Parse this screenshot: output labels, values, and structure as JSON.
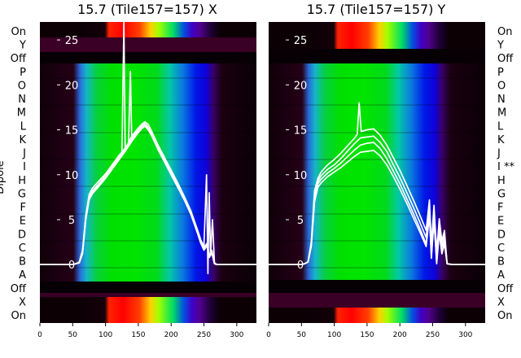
{
  "chart_data": [
    {
      "type": "line",
      "title": "15.7 (Tile157=157) X",
      "ylabel": "Dipole",
      "xlim": [
        0,
        330
      ],
      "ylim": [
        -6.5,
        27
      ],
      "x_ticks": [
        0,
        50,
        100,
        150,
        200,
        250,
        300
      ],
      "y_ticks": [
        0,
        5,
        10,
        15,
        20,
        25
      ],
      "dipole_labels": [
        "On",
        "Y",
        "Off",
        "P",
        "O",
        "N",
        "M",
        "L",
        "K",
        "J",
        "I",
        "H",
        "G",
        "F",
        "E",
        "D",
        "C",
        "B",
        "A",
        "Off",
        "X",
        "On"
      ],
      "series": [
        {
          "x": [
            0,
            45,
            50,
            55,
            60,
            65,
            70,
            75,
            80,
            90,
            100,
            110,
            120,
            130,
            140,
            150,
            155,
            160,
            165,
            170,
            180,
            190,
            200,
            210,
            220,
            230,
            240,
            245,
            250,
            255,
            258,
            262,
            266,
            270,
            280,
            290,
            300,
            320,
            330
          ],
          "y": [
            0,
            0,
            0,
            0.1,
            0.2,
            1.3,
            5.3,
            7.4,
            8.1,
            8.9,
            9.8,
            10.7,
            11.8,
            12.8,
            13.9,
            14.9,
            15.3,
            15.6,
            15.2,
            14.6,
            13.0,
            11.6,
            10.2,
            8.8,
            7.4,
            5.8,
            3.7,
            2.6,
            1.8,
            2.3,
            0.9,
            1.5,
            0.1,
            0,
            0,
            0,
            0,
            0,
            0
          ]
        },
        {
          "x": [
            0,
            45,
            50,
            55,
            60,
            65,
            70,
            75,
            80,
            90,
            100,
            110,
            120,
            130,
            140,
            150,
            155,
            160,
            165,
            170,
            180,
            190,
            200,
            210,
            220,
            230,
            240,
            245,
            250,
            255,
            258,
            262,
            266,
            270,
            280,
            290,
            300,
            320,
            330
          ],
          "y": [
            0,
            0,
            0,
            0.1,
            0.2,
            1.2,
            5.0,
            7.2,
            7.9,
            8.7,
            9.6,
            10.6,
            11.6,
            12.6,
            13.7,
            14.7,
            15.1,
            15.4,
            15.0,
            14.4,
            12.8,
            11.4,
            10.0,
            8.6,
            7.2,
            5.6,
            3.5,
            2.4,
            1.6,
            2.1,
            0.8,
            1.3,
            0.1,
            0,
            0,
            0,
            0,
            0,
            0
          ]
        },
        {
          "x": [
            0,
            45,
            50,
            55,
            60,
            65,
            70,
            75,
            80,
            90,
            100,
            110,
            120,
            125,
            128,
            130,
            140,
            150,
            155,
            160,
            165,
            170,
            180,
            190,
            200,
            210,
            220,
            230,
            240,
            245,
            250,
            254,
            256,
            258,
            260,
            263,
            266,
            270,
            280,
            290,
            300,
            320,
            330
          ],
          "y": [
            0,
            0,
            0,
            0.1,
            0.3,
            1.6,
            5.5,
            7.8,
            8.5,
            9.3,
            10.1,
            11.1,
            12.1,
            12.5,
            27,
            12.8,
            14.3,
            15.2,
            15.6,
            15.9,
            15.6,
            14.9,
            13.3,
            11.9,
            10.5,
            9.1,
            7.6,
            6.0,
            3.9,
            2.8,
            2.0,
            10,
            -1,
            8,
            1,
            5,
            0.2,
            0,
            0,
            0,
            0,
            0,
            0
          ]
        },
        {
          "x": [
            0,
            45,
            50,
            55,
            60,
            65,
            70,
            75,
            80,
            90,
            100,
            110,
            120,
            130,
            135,
            138,
            140,
            150,
            155,
            160,
            165,
            170,
            180,
            190,
            200,
            210,
            220,
            230,
            240,
            245,
            250,
            255,
            258,
            262,
            266,
            270,
            280,
            290,
            300,
            320,
            330
          ],
          "y": [
            0,
            0,
            0,
            0.1,
            0.2,
            1.4,
            5.2,
            7.5,
            8.2,
            9.0,
            9.9,
            10.9,
            11.9,
            13.0,
            13.5,
            21.5,
            14.0,
            15.0,
            15.4,
            15.7,
            15.3,
            14.7,
            13.1,
            11.7,
            10.3,
            8.9,
            7.5,
            5.9,
            3.8,
            2.7,
            1.9,
            2.4,
            1.0,
            1.6,
            0.1,
            0,
            0,
            0,
            0,
            0,
            0
          ]
        }
      ]
    },
    {
      "type": "line",
      "title": "15.7 (Tile157=157) Y",
      "xlim": [
        0,
        330
      ],
      "ylim": [
        -6.5,
        27
      ],
      "x_ticks": [
        0,
        50,
        100,
        150,
        200,
        250,
        300
      ],
      "y_ticks": [
        0,
        5,
        10,
        15,
        20,
        25
      ],
      "dipole_labels": [
        "On",
        "Y",
        "Off",
        "P",
        "O",
        "N",
        "M",
        "L",
        "K",
        "J",
        "I **",
        "H",
        "G",
        "F",
        "E",
        "D",
        "C",
        "B",
        "A",
        "Off",
        "X",
        "On"
      ],
      "series": [
        {
          "x": [
            0,
            45,
            50,
            55,
            60,
            65,
            70,
            75,
            80,
            90,
            100,
            110,
            120,
            130,
            140,
            150,
            160,
            170,
            180,
            190,
            200,
            210,
            220,
            230,
            240,
            245,
            248,
            252,
            256,
            260,
            264,
            268,
            272,
            280,
            290,
            300,
            320,
            330
          ],
          "y": [
            0,
            0,
            0,
            0.1,
            0.3,
            2.4,
            7.8,
            9.3,
            9.9,
            10.6,
            11.1,
            11.8,
            12.6,
            13.4,
            14.1,
            14.2,
            14.3,
            13.6,
            12.6,
            11.1,
            9.7,
            8.1,
            6.5,
            4.8,
            3.0,
            6.5,
            1.5,
            6.0,
            0.8,
            4.5,
            2.0,
            3.2,
            0.1,
            0,
            0,
            0,
            0,
            0
          ]
        },
        {
          "x": [
            0,
            45,
            50,
            55,
            60,
            65,
            70,
            75,
            80,
            90,
            100,
            110,
            120,
            130,
            140,
            150,
            160,
            170,
            180,
            190,
            200,
            210,
            220,
            230,
            240,
            245,
            248,
            252,
            256,
            260,
            264,
            268,
            272,
            280,
            290,
            300,
            320,
            330
          ],
          "y": [
            0,
            0,
            0,
            0.1,
            0.3,
            2.2,
            7.4,
            9.0,
            9.5,
            10.2,
            10.7,
            11.3,
            12.0,
            12.7,
            13.3,
            13.5,
            13.6,
            12.9,
            11.8,
            10.4,
            9.0,
            7.4,
            5.8,
            4.1,
            2.3,
            5.9,
            0.9,
            5.3,
            0.2,
            3.8,
            1.4,
            2.6,
            0.1,
            0,
            0,
            0,
            0,
            0
          ]
        },
        {
          "x": [
            0,
            45,
            50,
            55,
            60,
            65,
            70,
            75,
            80,
            90,
            100,
            110,
            120,
            130,
            135,
            138,
            141,
            150,
            160,
            170,
            180,
            190,
            200,
            210,
            220,
            230,
            240,
            245,
            248,
            252,
            256,
            260,
            264,
            268,
            272,
            280,
            290,
            300,
            320,
            330
          ],
          "y": [
            0,
            0,
            0,
            0.1,
            0.3,
            2.5,
            8.2,
            9.6,
            10.3,
            11.1,
            11.7,
            12.4,
            13.2,
            14.0,
            14.5,
            18,
            14.8,
            15.0,
            15.1,
            14.4,
            13.3,
            11.9,
            10.5,
            8.9,
            7.3,
            5.6,
            3.8,
            7.2,
            2.2,
            6.6,
            1.4,
            5.1,
            2.6,
            3.8,
            0.1,
            0,
            0,
            0,
            0,
            0
          ]
        },
        {
          "x": [
            0,
            45,
            50,
            55,
            60,
            65,
            70,
            75,
            80,
            90,
            100,
            110,
            120,
            130,
            140,
            150,
            160,
            170,
            180,
            190,
            200,
            210,
            220,
            230,
            240,
            245,
            248,
            252,
            256,
            260,
            264,
            268,
            272,
            280,
            290,
            300,
            320,
            330
          ],
          "y": [
            0,
            0,
            0,
            0.1,
            0.3,
            2.0,
            7.0,
            8.6,
            9.1,
            9.8,
            10.3,
            10.8,
            11.4,
            12.0,
            12.5,
            12.6,
            12.7,
            12.1,
            11.1,
            9.8,
            8.4,
            6.9,
            5.3,
            3.7,
            2.0,
            5.5,
            0.7,
            5.0,
            0.1,
            3.5,
            1.2,
            2.3,
            0.1,
            0,
            0,
            0,
            0,
            0
          ]
        }
      ]
    }
  ]
}
